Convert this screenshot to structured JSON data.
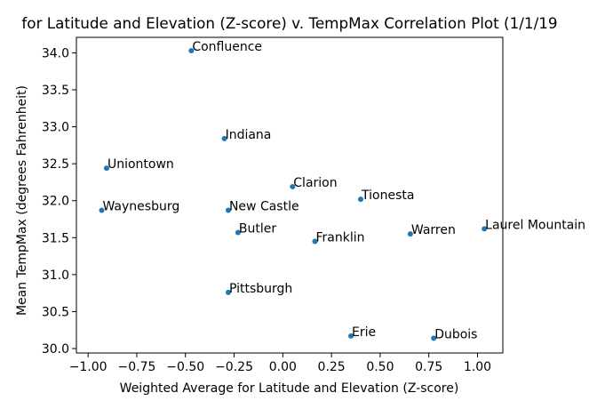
{
  "chart_data": {
    "type": "scatter",
    "title": "for Latitude and Elevation (Z-score) v. TempMax Correlation Plot (1/1/19",
    "xlabel": "Weighted Average for Latitude and Elevation (Z-score)",
    "ylabel": "Mean TempMax (degrees Fahrenheit)",
    "xlim": [
      -1.06,
      1.13
    ],
    "ylim": [
      29.94,
      34.21
    ],
    "xticks": [
      -1.0,
      -0.75,
      -0.5,
      -0.25,
      0.0,
      0.25,
      0.5,
      0.75,
      1.0
    ],
    "xtick_labels": [
      "−1.00",
      "−0.75",
      "−0.50",
      "−0.25",
      "0.00",
      "0.25",
      "0.50",
      "0.75",
      "1.00"
    ],
    "yticks": [
      30.0,
      30.5,
      31.0,
      31.5,
      32.0,
      32.5,
      33.0,
      33.5,
      34.0
    ],
    "ytick_labels": [
      "30.0",
      "30.5",
      "31.0",
      "31.5",
      "32.0",
      "32.5",
      "33.0",
      "33.5",
      "34.0"
    ],
    "grid": false,
    "point_color": "#1f77b4",
    "points": [
      {
        "label": "Confluence",
        "x": -0.47,
        "y": 34.03
      },
      {
        "label": "Indiana",
        "x": -0.3,
        "y": 32.84
      },
      {
        "label": "Uniontown",
        "x": -0.905,
        "y": 32.44
      },
      {
        "label": "Clarion",
        "x": 0.05,
        "y": 32.19
      },
      {
        "label": "Tionesta",
        "x": 0.4,
        "y": 32.02
      },
      {
        "label": "Waynesburg",
        "x": -0.93,
        "y": 31.87
      },
      {
        "label": "New Castle",
        "x": -0.28,
        "y": 31.87
      },
      {
        "label": "Butler",
        "x": -0.23,
        "y": 31.57
      },
      {
        "label": "Franklin",
        "x": 0.165,
        "y": 31.45
      },
      {
        "label": "Warren",
        "x": 0.655,
        "y": 31.55
      },
      {
        "label": "Laurel Mountain",
        "x": 1.035,
        "y": 31.62
      },
      {
        "label": "Pittsburgh",
        "x": -0.28,
        "y": 30.76
      },
      {
        "label": "Erie",
        "x": 0.35,
        "y": 30.17
      },
      {
        "label": "Dubois",
        "x": 0.775,
        "y": 30.14
      }
    ]
  }
}
